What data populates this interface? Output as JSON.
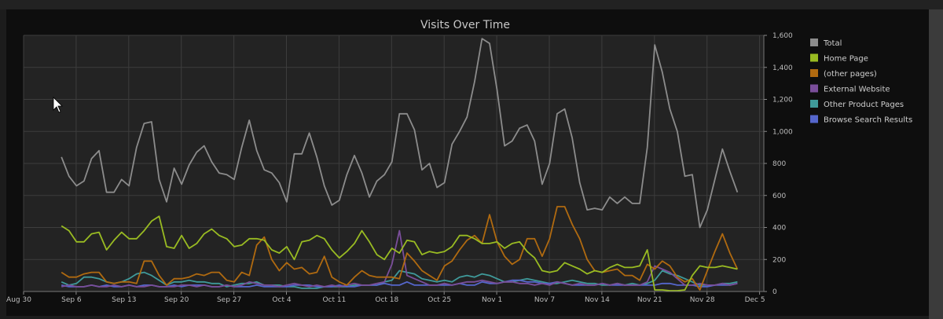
{
  "chart_data": {
    "type": "line",
    "title": "Visits Over Time",
    "x_ticks": [
      "Aug 30",
      "Sep 6",
      "Sep 13",
      "Sep 20",
      "Sep 27",
      "Oct 4",
      "Oct 11",
      "Oct 18",
      "Oct 25",
      "Nov 1",
      "Nov 7",
      "Nov 14",
      "Nov 21",
      "Nov 28",
      "Dec 5"
    ],
    "y_ticks": [
      "0",
      "200",
      "400",
      "600",
      "800",
      "1,000",
      "1,200",
      "1,400",
      "1,600"
    ],
    "ylim": [
      0,
      1600
    ],
    "x_start": "2021-09-03",
    "grid": true,
    "legend_position": "right",
    "series": [
      {
        "name": "Total",
        "color": "#8c8c8c",
        "values": [
          840,
          720,
          660,
          690,
          830,
          880,
          620,
          620,
          700,
          660,
          900,
          1050,
          1060,
          700,
          560,
          770,
          670,
          790,
          870,
          910,
          810,
          740,
          730,
          700,
          900,
          1070,
          880,
          760,
          740,
          680,
          560,
          860,
          860,
          990,
          840,
          660,
          540,
          570,
          730,
          850,
          740,
          590,
          690,
          730,
          810,
          1110,
          1110,
          1010,
          760,
          800,
          650,
          680,
          920,
          1000,
          1090,
          1310,
          1580,
          1550,
          1260,
          910,
          940,
          1020,
          1040,
          940,
          670,
          800,
          1110,
          1140,
          960,
          680,
          510,
          520,
          510,
          590,
          550,
          590,
          550,
          550,
          900,
          1540,
          1370,
          1140,
          1000,
          720,
          730,
          400,
          510,
          700,
          890,
          750,
          620
        ]
      },
      {
        "name": "Home Page",
        "color": "#99bb22",
        "values": [
          410,
          380,
          310,
          310,
          360,
          370,
          260,
          320,
          370,
          330,
          330,
          380,
          440,
          470,
          280,
          270,
          350,
          270,
          300,
          360,
          390,
          350,
          330,
          280,
          290,
          330,
          330,
          320,
          260,
          240,
          280,
          200,
          310,
          320,
          350,
          330,
          260,
          210,
          250,
          300,
          380,
          310,
          230,
          200,
          270,
          240,
          320,
          310,
          230,
          250,
          240,
          250,
          280,
          350,
          350,
          330,
          300,
          300,
          310,
          270,
          300,
          310,
          250,
          210,
          130,
          120,
          130,
          180,
          160,
          140,
          110,
          130,
          120,
          150,
          170,
          150,
          150,
          160,
          260,
          10,
          10,
          5,
          5,
          10,
          100,
          160,
          150,
          150,
          160,
          150,
          140
        ]
      },
      {
        "name": "(other pages)",
        "color": "#b06a10",
        "values": [
          120,
          90,
          90,
          110,
          120,
          120,
          60,
          50,
          60,
          60,
          50,
          190,
          190,
          100,
          40,
          80,
          80,
          90,
          110,
          100,
          120,
          120,
          70,
          60,
          120,
          100,
          290,
          340,
          200,
          130,
          180,
          140,
          150,
          110,
          120,
          220,
          90,
          60,
          40,
          90,
          130,
          100,
          90,
          90,
          90,
          80,
          240,
          190,
          130,
          100,
          70,
          160,
          190,
          260,
          320,
          350,
          300,
          480,
          310,
          220,
          170,
          200,
          330,
          330,
          220,
          330,
          530,
          530,
          420,
          330,
          200,
          130,
          120,
          130,
          140,
          100,
          100,
          70,
          170,
          140,
          190,
          160,
          90,
          60,
          80,
          10,
          130,
          250,
          360,
          240,
          140
        ]
      },
      {
        "name": "External Website",
        "color": "#7a4e9a",
        "values": [
          30,
          40,
          30,
          30,
          40,
          30,
          30,
          40,
          30,
          40,
          30,
          30,
          40,
          30,
          30,
          30,
          40,
          40,
          30,
          40,
          30,
          30,
          40,
          30,
          40,
          60,
          50,
          40,
          40,
          30,
          40,
          50,
          40,
          30,
          40,
          30,
          40,
          30,
          40,
          50,
          40,
          40,
          50,
          60,
          170,
          380,
          100,
          80,
          60,
          40,
          40,
          50,
          40,
          50,
          60,
          60,
          70,
          60,
          50,
          60,
          60,
          50,
          50,
          40,
          50,
          40,
          60,
          50,
          40,
          50,
          40,
          40,
          50,
          40,
          50,
          40,
          40,
          40,
          60,
          160,
          140,
          120,
          80,
          40,
          40,
          50,
          40,
          40,
          50,
          40,
          50
        ]
      },
      {
        "name": "Other Product Pages",
        "color": "#3f9a9a",
        "values": [
          60,
          40,
          50,
          90,
          90,
          80,
          60,
          50,
          60,
          80,
          110,
          120,
          100,
          70,
          40,
          60,
          60,
          70,
          60,
          60,
          50,
          50,
          30,
          40,
          50,
          50,
          60,
          40,
          40,
          40,
          30,
          30,
          20,
          20,
          20,
          30,
          30,
          30,
          30,
          40,
          40,
          40,
          40,
          60,
          70,
          130,
          120,
          110,
          80,
          70,
          60,
          70,
          60,
          90,
          100,
          90,
          110,
          100,
          80,
          60,
          60,
          70,
          80,
          70,
          60,
          50,
          50,
          60,
          70,
          60,
          50,
          50,
          40,
          40,
          50,
          40,
          50,
          40,
          50,
          70,
          130,
          110,
          100,
          80,
          60,
          40,
          40,
          40,
          50,
          50,
          60
        ]
      },
      {
        "name": "Browse Search Results",
        "color": "#5566cc",
        "values": [
          40,
          30,
          30,
          30,
          40,
          30,
          40,
          30,
          30,
          40,
          30,
          40,
          40,
          30,
          30,
          40,
          30,
          40,
          40,
          40,
          30,
          30,
          40,
          30,
          30,
          30,
          40,
          30,
          30,
          30,
          30,
          40,
          40,
          40,
          30,
          30,
          30,
          40,
          30,
          30,
          40,
          40,
          40,
          50,
          40,
          40,
          60,
          40,
          40,
          40,
          40,
          40,
          40,
          50,
          40,
          40,
          60,
          50,
          50,
          60,
          70,
          70,
          60,
          60,
          50,
          50,
          60,
          50,
          40,
          40,
          40,
          40,
          50,
          40,
          40,
          40,
          40,
          40,
          40,
          40,
          50,
          50,
          40,
          40,
          40,
          30,
          30,
          40,
          40,
          40,
          50
        ]
      }
    ]
  }
}
